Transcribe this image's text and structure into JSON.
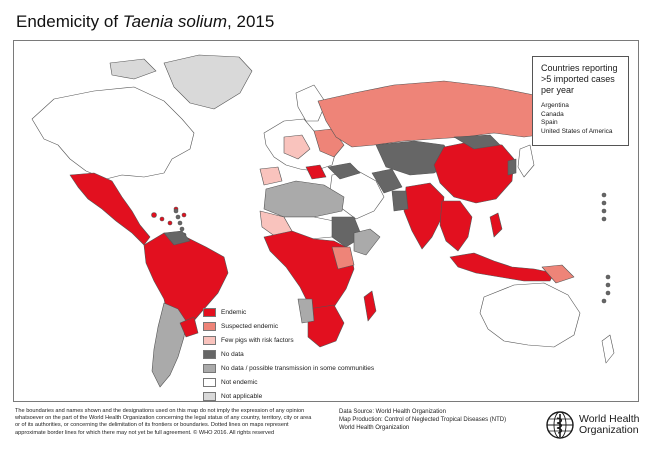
{
  "title": {
    "prefix": "Endemicity of ",
    "species": "Taenia solium",
    "suffix": ", 2015"
  },
  "colors": {
    "endemic": "#e2101f",
    "suspected_endemic": "#ee8478",
    "few_pigs": "#f9c3bd",
    "no_data": "#666666",
    "no_data_possible": "#aaaaaa",
    "not_endemic": "#ffffff",
    "not_applicable": "#d9d9d9"
  },
  "imported_box": {
    "title": "Countries reporting >5 imported cases per year",
    "countries": [
      "Argentina",
      "Canada",
      "Spain",
      "United States of America"
    ]
  },
  "legend": [
    {
      "label": "Endemic",
      "color": "#e2101f"
    },
    {
      "label": "Suspected endemic",
      "color": "#ee8478"
    },
    {
      "label": "Few pigs with risk factors",
      "color": "#f9c3bd"
    },
    {
      "label": "No data",
      "color": "#666666"
    },
    {
      "label": "No data / possible transmission in some communities",
      "color": "#aaaaaa"
    },
    {
      "label": "Not endemic",
      "color": "#ffffff"
    },
    {
      "label": "Not applicable",
      "color": "#d9d9d9"
    }
  ],
  "footer": {
    "disclaimer": "The boundaries and names shown and the designations used on this map do not imply the expression of any opinion whatsoever on the part of the World Health Organization concerning the legal status of any country, territory, city or area or of its authorities, or concerning the delimitation of its frontiers or boundaries. Dotted lines on maps represent approximate border lines for which there may not yet be full agreement. © WHO 2016. All rights reserved",
    "data_source": "Data Source: World Health Organization",
    "map_production": "Map Production: Control of Neglected Tropical Diseases (NTD)",
    "organization": "World Health Organization"
  },
  "logo": {
    "line1": "World Health",
    "line2": "Organization"
  }
}
